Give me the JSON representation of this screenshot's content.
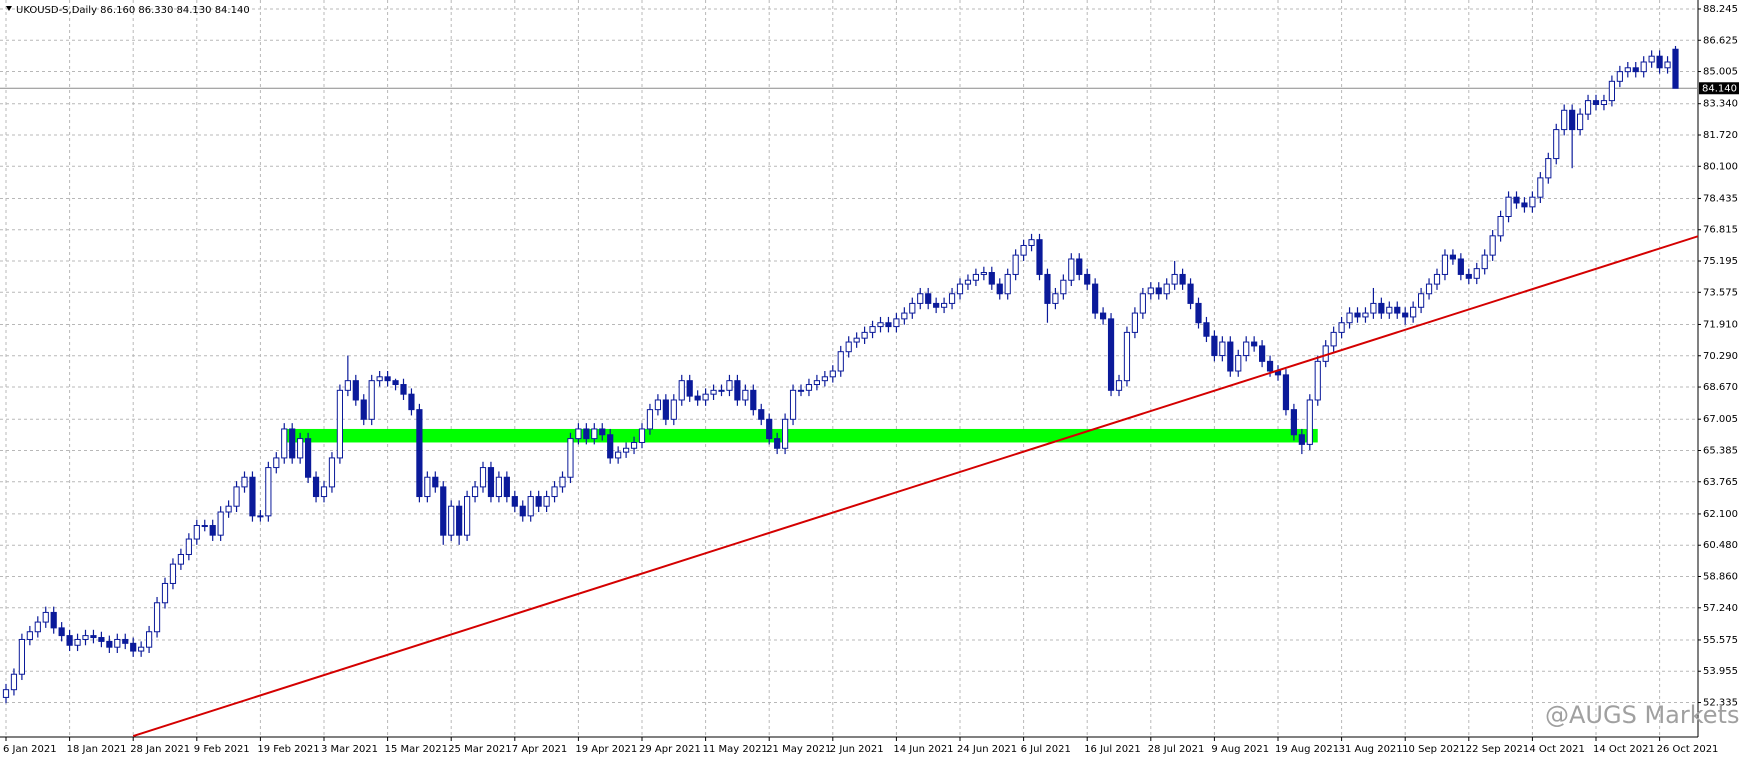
{
  "chart_data": {
    "type": "candlestick",
    "title": "UKOUSD-S,Daily  86.160 86.330 84.130 84.140",
    "watermark": "@AUGS Markets",
    "categories": [
      "6 Jan 2021",
      null,
      null,
      null,
      null,
      null,
      null,
      null,
      "18 Jan 2021",
      null,
      null,
      null,
      null,
      null,
      null,
      null,
      "28 Jan 2021",
      null,
      null,
      null,
      null,
      null,
      null,
      null,
      "9 Feb 2021",
      null,
      null,
      null,
      null,
      null,
      null,
      null,
      "19 Feb 2021",
      null,
      null,
      null,
      null,
      null,
      null,
      null,
      "3 Mar 2021",
      null,
      null,
      null,
      null,
      null,
      null,
      null,
      "15 Mar 2021",
      null,
      null,
      null,
      null,
      null,
      null,
      null,
      "25 Mar 2021",
      null,
      null,
      null,
      null,
      null,
      null,
      null,
      "7 Apr 2021",
      null,
      null,
      null,
      null,
      null,
      null,
      null,
      "19 Apr 2021",
      null,
      null,
      null,
      null,
      null,
      null,
      null,
      "29 Apr 2021",
      null,
      null,
      null,
      null,
      null,
      null,
      null,
      "11 May 2021",
      null,
      null,
      null,
      null,
      null,
      null,
      null,
      "21 May 2021",
      null,
      null,
      null,
      null,
      null,
      null,
      null,
      "2 Jun 2021",
      null,
      null,
      null,
      null,
      null,
      null,
      null,
      "14 Jun 2021",
      null,
      null,
      null,
      null,
      null,
      null,
      null,
      "24 Jun 2021",
      null,
      null,
      null,
      null,
      null,
      null,
      null,
      "6 Jul 2021",
      null,
      null,
      null,
      null,
      null,
      null,
      null,
      "16 Jul 2021",
      null,
      null,
      null,
      null,
      null,
      null,
      null,
      "28 Jul 2021",
      null,
      null,
      null,
      null,
      null,
      null,
      null,
      "9 Aug 2021",
      null,
      null,
      null,
      null,
      null,
      null,
      null,
      "19 Aug 2021",
      null,
      null,
      null,
      null,
      null,
      null,
      null,
      "31 Aug 2021",
      null,
      null,
      null,
      null,
      null,
      null,
      null,
      "10 Sep 2021",
      null,
      null,
      null,
      null,
      null,
      null,
      null,
      "22 Sep 2021",
      null,
      null,
      null,
      null,
      null,
      null,
      null,
      "4 Oct 2021",
      null,
      null,
      null,
      null,
      null,
      null,
      null,
      "14 Oct 2021",
      null,
      null,
      null,
      null,
      null,
      null,
      null,
      "26 Oct 2021",
      null,
      null
    ],
    "open": [
      52.6,
      53.0,
      53.8,
      55.6,
      56.0,
      56.5,
      57.0,
      56.2,
      55.8,
      55.3,
      55.6,
      55.8,
      55.7,
      55.5,
      55.2,
      55.6,
      55.4,
      55.0,
      55.2,
      56.0,
      57.5,
      58.5,
      59.5,
      60.0,
      60.8,
      61.5,
      61.5,
      61.0,
      62.2,
      62.5,
      63.5,
      64.0,
      62.0,
      62.0,
      64.5,
      65.0,
      66.5,
      65.0,
      66.0,
      64.0,
      63.0,
      63.5,
      65.0,
      68.5,
      69.0,
      68.0,
      67.0,
      69.0,
      69.2,
      69.0,
      68.8,
      68.3,
      67.5,
      63.0,
      64.0,
      63.5,
      61.0,
      62.5,
      61.0,
      63.0,
      63.5,
      64.5,
      63.0,
      64.0,
      63.0,
      62.5,
      62.0,
      63.0,
      62.5,
      63.0,
      63.5,
      64.0,
      66.0,
      66.5,
      66.0,
      66.5,
      66.2,
      65.0,
      65.3,
      65.5,
      65.8,
      66.5,
      67.5,
      68.0,
      67.0,
      68.0,
      69.0,
      68.2,
      68.0,
      68.3,
      68.5,
      68.5,
      69.0,
      68.0,
      68.5,
      67.5,
      67.0,
      66.0,
      65.5,
      67.0,
      68.5,
      68.5,
      68.8,
      69.0,
      69.2,
      69.5,
      70.5,
      71.0,
      71.2,
      71.5,
      71.8,
      72.0,
      71.8,
      72.2,
      72.5,
      73.0,
      73.5,
      73.0,
      72.8,
      73.0,
      73.5,
      74.0,
      74.2,
      74.5,
      74.6,
      74.0,
      73.5,
      74.5,
      75.5,
      76.0,
      76.3,
      74.5,
      73.0,
      73.5,
      74.2,
      75.3,
      74.5,
      74.0,
      72.5,
      72.2,
      68.5,
      69.0,
      71.5,
      72.5,
      73.5,
      73.8,
      73.5,
      74.0,
      74.5,
      74.0,
      73.0,
      72.0,
      71.3,
      70.3,
      71.0,
      69.5,
      70.3,
      71.0,
      70.8,
      70.0,
      69.5,
      69.3,
      67.5,
      66.2,
      65.7,
      68.0,
      70.0,
      70.8,
      71.5,
      72.0,
      72.5,
      72.3,
      72.5,
      73.0,
      72.5,
      72.8,
      72.5,
      72.3,
      72.8,
      73.5,
      74.0,
      74.5,
      75.5,
      75.3,
      74.5,
      74.3,
      74.8,
      75.5,
      76.5,
      77.5,
      78.5,
      78.2,
      78.0,
      78.5,
      79.5,
      80.5,
      82.0,
      83.0,
      82.0,
      82.8,
      83.5,
      83.3,
      83.5,
      84.5,
      85.0,
      85.2,
      85.0,
      85.5,
      85.8,
      85.2,
      86.16
    ],
    "high": [
      53.3,
      54.1,
      55.9,
      56.3,
      56.8,
      57.3,
      57.3,
      56.5,
      56.1,
      55.9,
      56.1,
      56.1,
      56.0,
      55.8,
      55.9,
      55.9,
      55.7,
      55.5,
      56.3,
      57.8,
      58.8,
      59.8,
      60.3,
      61.1,
      61.8,
      61.8,
      61.8,
      62.5,
      62.8,
      63.8,
      64.3,
      64.3,
      62.3,
      64.8,
      65.3,
      66.8,
      66.8,
      66.3,
      66.3,
      64.3,
      63.8,
      65.3,
      68.8,
      70.3,
      69.3,
      68.3,
      69.3,
      69.5,
      69.5,
      69.1,
      69.1,
      68.6,
      67.8,
      64.3,
      64.3,
      63.8,
      62.8,
      62.8,
      63.3,
      63.8,
      64.8,
      64.8,
      64.3,
      64.3,
      63.3,
      62.8,
      63.3,
      63.3,
      63.3,
      63.8,
      64.3,
      66.3,
      66.8,
      66.8,
      66.8,
      66.8,
      66.5,
      65.6,
      65.8,
      66.1,
      66.8,
      67.8,
      68.3,
      68.3,
      68.3,
      69.3,
      69.3,
      68.5,
      68.6,
      68.8,
      68.8,
      69.3,
      69.3,
      68.8,
      68.8,
      67.8,
      67.3,
      66.3,
      67.3,
      68.8,
      68.8,
      69.1,
      69.3,
      69.5,
      69.8,
      70.8,
      71.3,
      71.5,
      71.8,
      72.1,
      72.3,
      72.3,
      72.5,
      72.8,
      73.3,
      73.8,
      73.8,
      73.3,
      73.3,
      73.8,
      74.3,
      74.5,
      74.8,
      74.9,
      74.9,
      74.3,
      74.8,
      75.8,
      76.3,
      76.6,
      76.6,
      74.8,
      73.8,
      74.5,
      75.6,
      75.6,
      74.8,
      74.3,
      72.8,
      72.5,
      69.3,
      71.8,
      72.8,
      73.8,
      74.1,
      74.1,
      74.3,
      75.2,
      74.8,
      74.3,
      73.3,
      72.3,
      71.6,
      71.3,
      71.3,
      70.6,
      71.3,
      71.3,
      71.1,
      70.3,
      69.8,
      69.6,
      67.8,
      66.5,
      68.3,
      70.3,
      71.1,
      71.8,
      72.3,
      72.8,
      72.8,
      72.8,
      73.8,
      73.3,
      73.1,
      73.1,
      72.8,
      73.1,
      73.8,
      74.3,
      74.8,
      75.8,
      75.8,
      75.6,
      74.8,
      75.1,
      75.8,
      76.8,
      77.8,
      78.8,
      78.8,
      78.5,
      78.8,
      79.8,
      80.8,
      82.3,
      83.3,
      83.3,
      83.1,
      83.8,
      83.8,
      83.8,
      84.8,
      85.3,
      85.5,
      85.5,
      85.8,
      86.1,
      86.1,
      85.8,
      86.33
    ],
    "low": [
      52.3,
      52.7,
      53.5,
      55.3,
      55.7,
      56.2,
      55.9,
      55.5,
      55.0,
      55.0,
      55.3,
      55.4,
      55.2,
      54.9,
      54.9,
      55.1,
      54.7,
      54.7,
      54.9,
      55.7,
      57.2,
      58.2,
      59.2,
      59.7,
      60.5,
      61.2,
      60.7,
      60.7,
      61.9,
      62.2,
      63.2,
      61.7,
      61.7,
      61.7,
      64.2,
      64.7,
      64.7,
      64.7,
      63.7,
      62.7,
      62.7,
      63.2,
      64.7,
      68.2,
      67.7,
      66.7,
      66.7,
      68.7,
      68.7,
      68.5,
      68.0,
      67.2,
      62.7,
      62.7,
      63.2,
      60.5,
      60.7,
      60.5,
      60.7,
      62.7,
      63.2,
      62.7,
      62.7,
      62.7,
      62.2,
      61.7,
      61.7,
      62.2,
      62.2,
      62.7,
      63.2,
      63.7,
      65.7,
      65.7,
      65.7,
      65.9,
      64.7,
      64.7,
      65.0,
      65.2,
      65.5,
      66.2,
      67.2,
      66.7,
      66.7,
      67.7,
      67.9,
      67.7,
      67.7,
      68.0,
      68.2,
      68.2,
      67.7,
      67.7,
      67.2,
      66.7,
      65.7,
      65.2,
      65.2,
      66.7,
      68.2,
      68.2,
      68.5,
      68.7,
      68.9,
      69.2,
      70.2,
      70.7,
      70.9,
      71.2,
      71.5,
      71.5,
      71.5,
      71.9,
      72.2,
      72.7,
      72.7,
      72.5,
      72.5,
      72.7,
      73.2,
      73.7,
      73.9,
      74.2,
      73.7,
      73.2,
      73.2,
      74.2,
      75.2,
      75.7,
      74.2,
      72.0,
      72.7,
      73.2,
      73.9,
      74.2,
      73.7,
      72.2,
      71.9,
      68.2,
      68.2,
      68.7,
      71.2,
      72.2,
      73.2,
      73.2,
      73.2,
      73.7,
      73.7,
      72.7,
      71.7,
      71.0,
      70.0,
      70.0,
      69.2,
      69.2,
      70.0,
      70.5,
      69.7,
      69.2,
      69.0,
      67.2,
      65.9,
      65.2,
      65.4,
      67.7,
      69.7,
      70.5,
      71.2,
      71.7,
      72.0,
      72.0,
      72.2,
      72.2,
      72.2,
      72.2,
      71.9,
      72.0,
      72.5,
      73.2,
      73.7,
      74.2,
      75.0,
      74.2,
      74.0,
      74.0,
      74.5,
      75.2,
      76.2,
      77.2,
      77.9,
      77.7,
      77.7,
      78.2,
      79.2,
      80.2,
      81.7,
      80.0,
      81.7,
      82.5,
      83.0,
      83.0,
      83.2,
      84.2,
      84.7,
      84.7,
      84.7,
      85.2,
      84.9,
      84.9,
      84.13
    ],
    "close": [
      53.0,
      53.8,
      55.6,
      56.0,
      56.5,
      57.0,
      56.2,
      55.8,
      55.3,
      55.6,
      55.8,
      55.7,
      55.5,
      55.2,
      55.6,
      55.4,
      55.0,
      55.2,
      56.0,
      57.5,
      58.5,
      59.5,
      60.0,
      60.8,
      61.5,
      61.5,
      61.0,
      62.2,
      62.5,
      63.5,
      64.0,
      62.0,
      62.0,
      64.5,
      65.0,
      66.5,
      65.0,
      66.0,
      64.0,
      63.0,
      63.5,
      65.0,
      68.5,
      69.0,
      68.0,
      67.0,
      69.0,
      69.2,
      69.0,
      68.8,
      68.3,
      67.5,
      63.0,
      64.0,
      63.5,
      61.0,
      62.5,
      61.0,
      63.0,
      63.5,
      64.5,
      63.0,
      64.0,
      63.0,
      62.5,
      62.0,
      63.0,
      62.5,
      63.0,
      63.5,
      64.0,
      66.0,
      66.5,
      66.0,
      66.5,
      66.2,
      65.0,
      65.3,
      65.5,
      65.8,
      66.5,
      67.5,
      68.0,
      67.0,
      68.0,
      69.0,
      68.2,
      68.0,
      68.3,
      68.5,
      68.5,
      69.0,
      68.0,
      68.5,
      67.5,
      67.0,
      66.0,
      65.5,
      67.0,
      68.5,
      68.5,
      68.8,
      69.0,
      69.2,
      69.5,
      70.5,
      71.0,
      71.2,
      71.5,
      71.8,
      72.0,
      71.8,
      72.2,
      72.5,
      73.0,
      73.5,
      73.0,
      72.8,
      73.0,
      73.5,
      74.0,
      74.2,
      74.5,
      74.6,
      74.0,
      73.5,
      74.5,
      75.5,
      76.0,
      76.3,
      74.5,
      73.0,
      73.5,
      74.2,
      75.3,
      74.5,
      74.0,
      72.5,
      72.2,
      68.5,
      69.0,
      71.5,
      72.5,
      73.5,
      73.8,
      73.5,
      74.0,
      74.5,
      74.0,
      73.0,
      72.0,
      71.3,
      70.3,
      71.0,
      69.5,
      70.3,
      71.0,
      70.8,
      70.0,
      69.5,
      69.3,
      67.5,
      66.2,
      65.7,
      68.0,
      70.0,
      70.8,
      71.5,
      72.0,
      72.5,
      72.3,
      72.5,
      73.0,
      72.5,
      72.8,
      72.5,
      72.3,
      72.8,
      73.5,
      74.0,
      74.5,
      75.5,
      75.3,
      74.5,
      74.3,
      74.8,
      75.5,
      76.5,
      77.5,
      78.5,
      78.2,
      78.0,
      78.5,
      79.5,
      80.5,
      82.0,
      83.0,
      82.0,
      82.8,
      83.5,
      83.3,
      83.5,
      84.5,
      85.0,
      85.2,
      85.0,
      85.5,
      85.8,
      85.2,
      85.5,
      84.14
    ],
    "up_color": "#ffffff",
    "down_color": "#0b1a9a",
    "outline_color": "#0b1a9a",
    "ylim": [
      50.55,
      88.71
    ],
    "yticks": [
      88.245,
      86.625,
      85.005,
      {
        "value": 83.34,
        "label": "83.340"
      },
      {
        "value": 81.72,
        "label": "81.720"
      },
      {
        "value": 80.1,
        "label": "80.100"
      },
      78.435,
      76.815,
      75.195,
      73.575,
      {
        "value": 71.91,
        "label": "71.910"
      },
      {
        "value": 70.29,
        "label": "70.290"
      },
      {
        "value": 68.67,
        "label": "68.670"
      },
      67.005,
      65.385,
      63.765,
      {
        "value": 62.1,
        "label": "62.100"
      },
      {
        "value": 60.48,
        "label": "60.480"
      },
      {
        "value": 58.86,
        "label": "58.860"
      },
      {
        "value": 57.24,
        "label": "57.240"
      },
      55.575,
      53.955,
      52.335
    ],
    "grid": true,
    "last_price": {
      "value": 84.14,
      "label": "84.140"
    },
    "trendline": {
      "x": [
        16,
        213
      ],
      "y": [
        50.6,
        76.5
      ],
      "color": "#d40000"
    },
    "zone": {
      "x": [
        35,
        165
      ],
      "y": [
        65.8,
        66.5
      ],
      "color": "#00ff00"
    }
  }
}
